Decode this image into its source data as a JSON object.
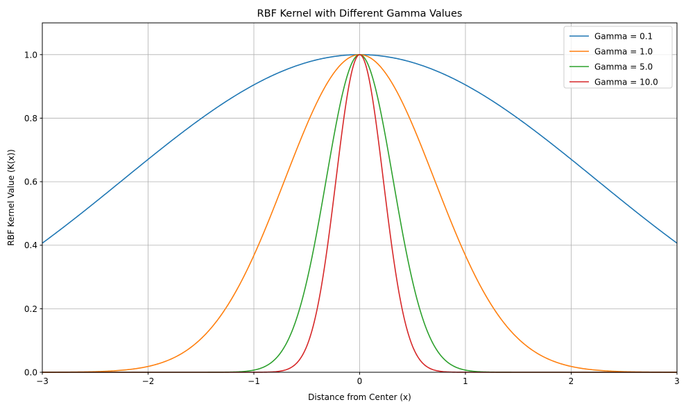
{
  "chart_data": {
    "type": "line",
    "title": "RBF Kernel with Different Gamma Values",
    "xlabel": "Distance from Center (x)",
    "ylabel": "RBF Kernel Value (K(x))",
    "xlim": [
      -3,
      3
    ],
    "ylim": [
      0,
      1.1
    ],
    "xticks": [
      -3,
      -2,
      -1,
      0,
      1,
      2,
      3
    ],
    "xtick_labels": [
      "−3",
      "−2",
      "−1",
      "0",
      "1",
      "2",
      "3"
    ],
    "yticks": [
      0,
      0.2,
      0.4,
      0.6,
      0.8,
      1.0
    ],
    "ytick_labels": [
      "0.0",
      "0.2",
      "0.4",
      "0.6",
      "0.8",
      "1.0"
    ],
    "grid": true,
    "legend_position": "top-right",
    "function": "K(x) = exp(-gamma * x^2)",
    "series": [
      {
        "name": "Gamma = 0.1",
        "gamma": 0.1,
        "color": "#1f77b4"
      },
      {
        "name": "Gamma = 1.0",
        "gamma": 1.0,
        "color": "#ff7f0e"
      },
      {
        "name": "Gamma = 5.0",
        "gamma": 5.0,
        "color": "#2ca02c"
      },
      {
        "name": "Gamma = 10.0",
        "gamma": 10.0,
        "color": "#d62728"
      }
    ]
  }
}
